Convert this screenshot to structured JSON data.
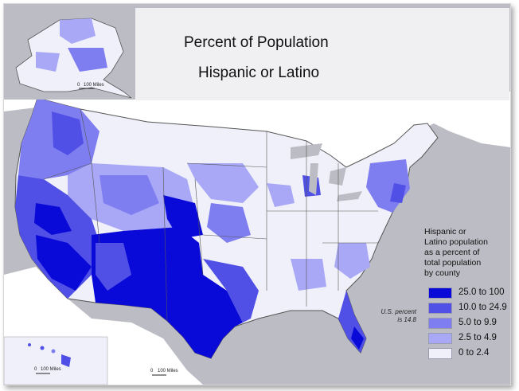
{
  "title": {
    "line1": "Percent of Population",
    "line2": "Hispanic or Latino"
  },
  "legend": {
    "title_lines": [
      "Hispanic or",
      "Latino population",
      "as a percent of",
      "total population",
      "by county"
    ],
    "items": [
      {
        "label": "25.0 to 100",
        "color": "#0a0ad8"
      },
      {
        "label": "10.0 to 24.9",
        "color": "#5050e6"
      },
      {
        "label": "5.0 to 9.9",
        "color": "#7e7ef0"
      },
      {
        "label": "2.5 to 4.9",
        "color": "#a8a8f6"
      },
      {
        "label": "0 to 2.4",
        "color": "#f0f0fa"
      }
    ]
  },
  "note": {
    "line1": "U.S. percent",
    "line2": "is 14.8"
  },
  "scales": {
    "alaska": {
      "zero": "0",
      "label": "100 Miles"
    },
    "hawaii": {
      "zero": "0",
      "label": "100 Miles"
    },
    "conus": {
      "zero": "0",
      "label": "100 Miles"
    }
  },
  "colors": {
    "water": "#bcbcc4",
    "frame_bg": "#ffffff",
    "title_bg": "#f0f0f3",
    "neighbor_land": "#ffffff"
  }
}
